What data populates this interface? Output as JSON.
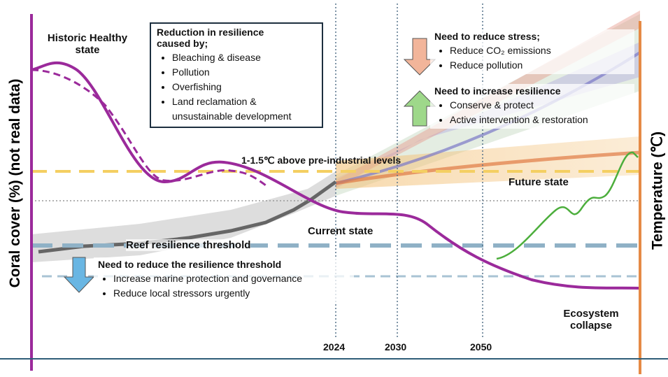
{
  "axes": {
    "left_label": "Coral cover (%) (not real data)",
    "right_label": "Temperature (℃)"
  },
  "years": [
    "2024",
    "2030",
    "2050"
  ],
  "labels": {
    "historic": "Historic Healthy state",
    "current": "Current state",
    "future": "Future state",
    "collapse": "Ecosystem collapse",
    "threshold": "Reef resilience threshold",
    "warming": "1-1.5℃ above pre-industrial levels"
  },
  "boxes": {
    "reduction": {
      "title": "Reduction in resilience caused by;",
      "items": [
        "Bleaching & disease",
        "Pollution",
        "Overfishing",
        "Land reclamation & unsustainable development"
      ]
    },
    "stress": {
      "title": "Need to reduce stress;",
      "items": [
        "Reduce CO₂ emissions",
        "Reduce pollution"
      ]
    },
    "resilience": {
      "title": "Need to increase resilience",
      "items": [
        "Conserve & protect",
        "Active intervention & restoration"
      ]
    },
    "threshold": {
      "title": "Need to reduce the resilience threshold",
      "items": [
        "Increase marine protection and governance",
        "Reduce local stressors urgently"
      ]
    }
  }
}
